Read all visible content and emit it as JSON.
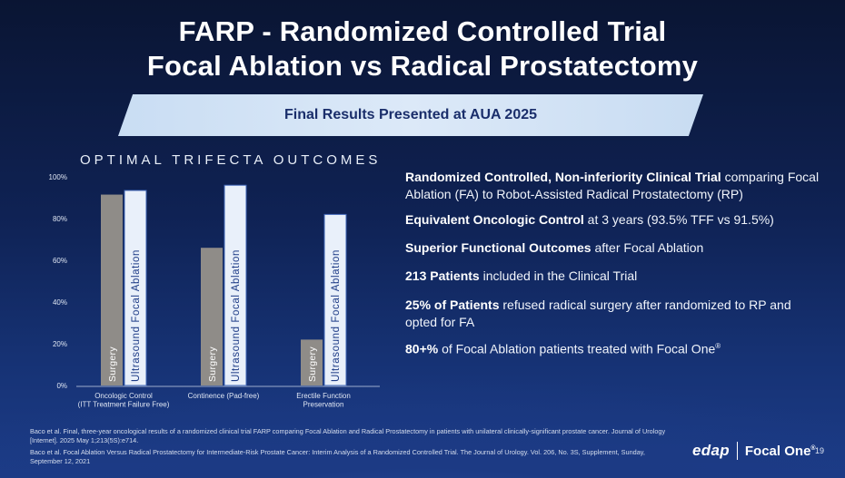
{
  "slide": {
    "title_line1": "FARP - Randomized Controlled Trial",
    "title_line2": "Focal Ablation vs Radical Prostatectomy",
    "banner": "Final Results Presented at AUA 2025",
    "page_number": "19"
  },
  "chart_data": {
    "type": "bar",
    "title": "OPTIMAL TRIFECTA OUTCOMES",
    "categories": [
      "Oncologic Control\n(ITT Treatment Failure Free)",
      "Continence (Pad-free)",
      "Erectile Function\nPreservation"
    ],
    "category_lines": [
      [
        "Oncologic Control",
        "(ITT Treatment Failure Free)"
      ],
      [
        "Continence (Pad-free)"
      ],
      [
        "Erectile Function",
        "Preservation"
      ]
    ],
    "series": [
      {
        "name": "Surgery",
        "values": [
          91.5,
          66,
          22
        ],
        "color": "#8f8c88"
      },
      {
        "name": "Ultrasound Focal Ablation",
        "values": [
          93.5,
          96,
          82
        ],
        "color": "#e9f0fa"
      }
    ],
    "ylim": [
      0,
      100
    ],
    "yticks": [
      0,
      20,
      40,
      60,
      80,
      100
    ],
    "ytick_labels": [
      "0%",
      "20%",
      "40%",
      "60%",
      "80%",
      "100%"
    ],
    "grid": false
  },
  "bullets": [
    {
      "bold": "Randomized Controlled, Non-inferiority Clinical Trial",
      "text": " comparing Focal Ablation (FA) to Robot-Assisted Radical Prostatectomy (RP)"
    },
    {
      "bold": "Equivalent Oncologic Control",
      "text": " at 3 years (93.5% TFF vs 91.5%)"
    },
    {
      "bold": "Superior Functional Outcomes",
      "text": " after Focal Ablation"
    },
    {
      "bold": "213 Patients",
      "text": " included in the Clinical Trial"
    },
    {
      "bold": "25% of Patients",
      "text": " refused radical surgery after randomized to RP and opted for FA"
    },
    {
      "bold": "80+%",
      "text": " of Focal Ablation patients treated with Focal One",
      "sup": "®"
    }
  ],
  "references": [
    "Baco et al. Final, three-year oncological results of a randomized clinical trial FARP comparing Focal Ablation and Radical Prostatectomy in patients with unilateral clinically-significant prostate cancer. Journal of Urology [Internet]. 2025 May 1;213(5S):e714.",
    "Baco et al. Focal Ablation Versus Radical Prostatectomy for Intermediate-Risk Prostate Cancer: Interim Analysis of a Randomized Controlled Trial. The Journal of Urology. Vol. 206, No. 3S, Supplement, Sunday, September 12, 2021"
  ],
  "brand": {
    "edap": "edap",
    "focal_one": "Focal One",
    "trademark": "®"
  }
}
